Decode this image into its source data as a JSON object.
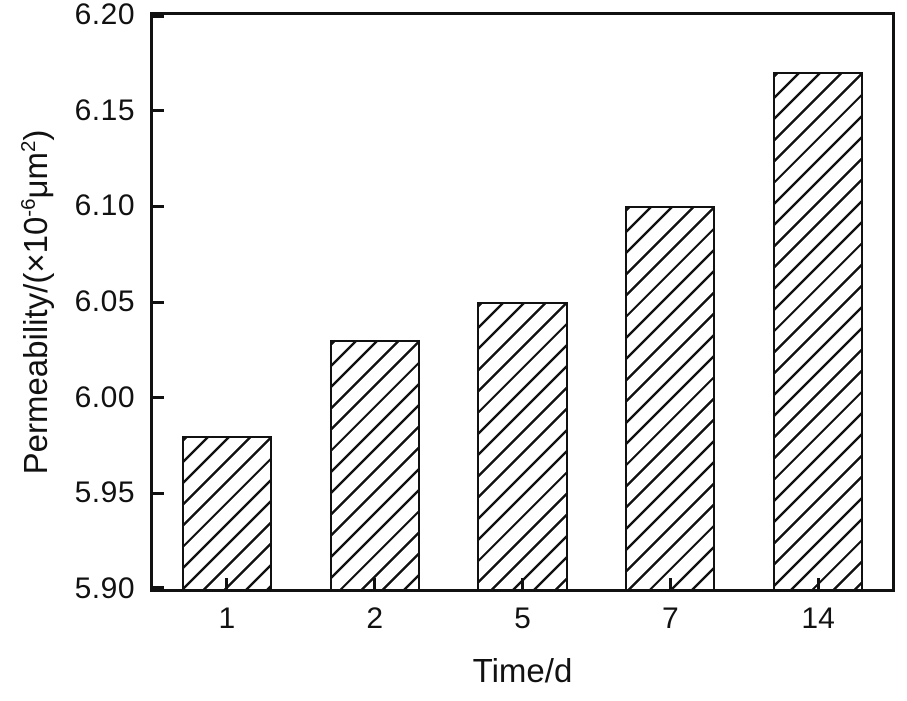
{
  "chart_data": {
    "type": "bar",
    "categories": [
      "1",
      "2",
      "5",
      "7",
      "14"
    ],
    "values": [
      5.98,
      6.03,
      6.05,
      6.1,
      6.17
    ],
    "title": "",
    "xlabel": "Time/d",
    "ylabel": "Permeability/(×10-6μm2)",
    "ylabel_parts": {
      "pre": "Permeability/(×10",
      "sup1": "-6",
      "mid": "μm",
      "sup2": "2",
      "post": ")"
    },
    "ylim": [
      5.9,
      6.2
    ],
    "yticks": [
      5.9,
      5.95,
      6.0,
      6.05,
      6.1,
      6.15,
      6.2
    ],
    "ytick_labels": [
      "5.90",
      "5.95",
      "6.00",
      "6.05",
      "6.10",
      "6.15",
      "6.20"
    ],
    "bar_fill": "diagonal-hatch",
    "bar_width_fraction": 0.61,
    "axis_color": "#111111",
    "background": "#ffffff",
    "legend": "none",
    "grid": "off"
  }
}
